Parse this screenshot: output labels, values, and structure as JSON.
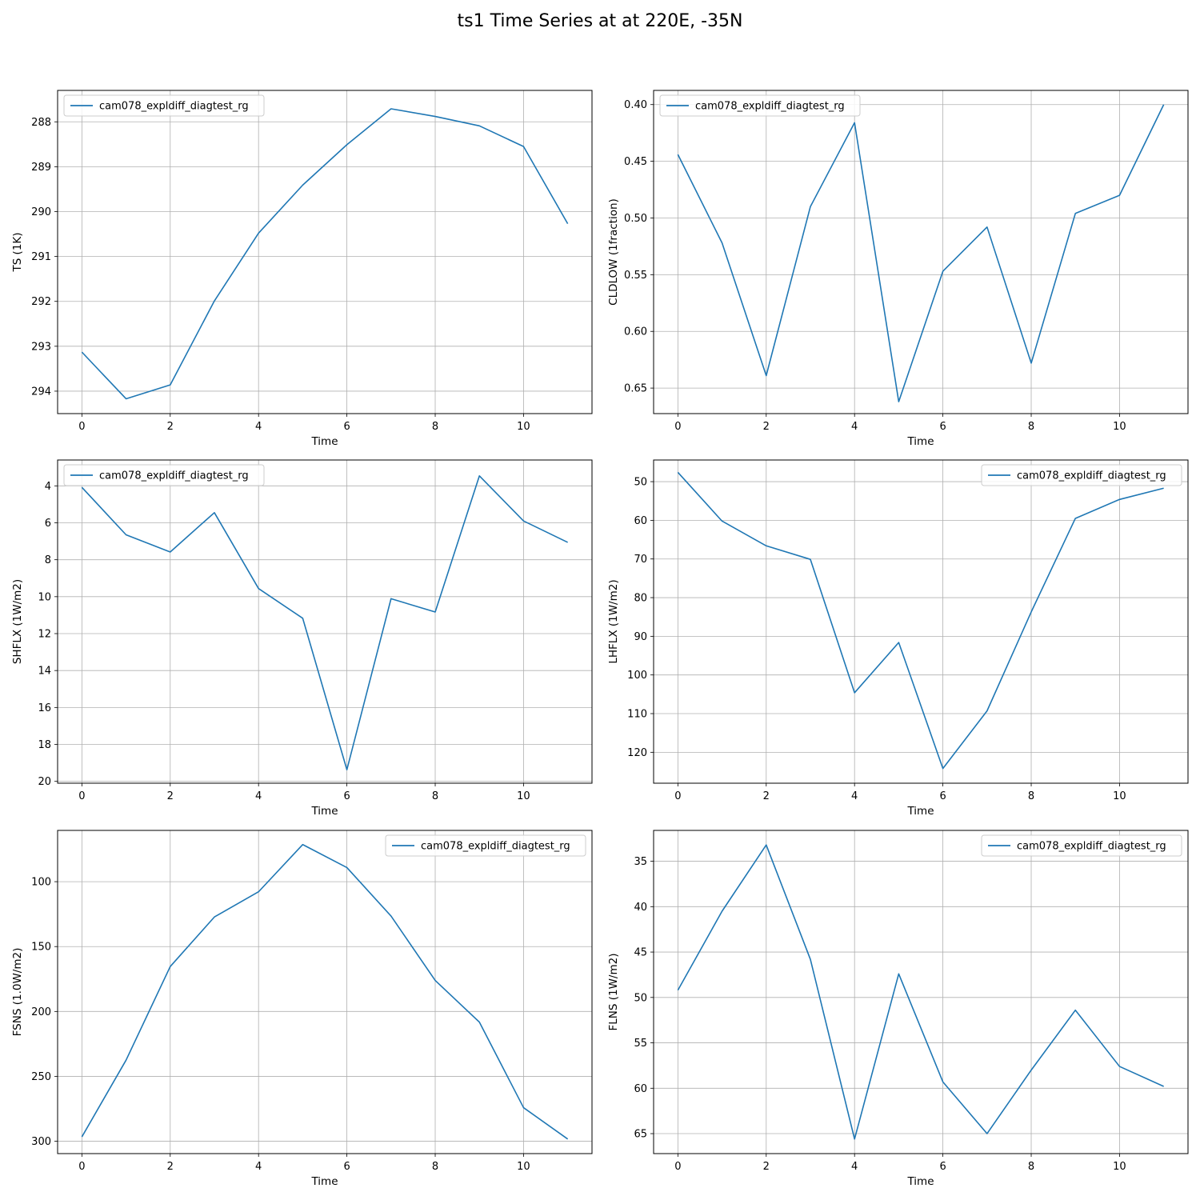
{
  "figure_title": "ts1 Time Series at at 220E, -35N",
  "chart_data": [
    {
      "type": "line",
      "xlabel": "Time",
      "ylabel": "TS (1K)",
      "xlim": [
        -0.55,
        11.55
      ],
      "ylim": [
        294.5,
        287.3
      ],
      "inverted_y": true,
      "grid": true,
      "legend": "top-left",
      "xticks": [
        0,
        2,
        4,
        6,
        8,
        10
      ],
      "yticks": [
        288,
        289,
        290,
        291,
        292,
        293,
        294
      ],
      "series": [
        {
          "name": "cam078_expldiff_diagtest_rg",
          "color": "#1f77b4",
          "x": [
            0,
            1,
            2,
            3,
            4,
            5,
            6,
            7,
            8,
            9,
            10,
            11
          ],
          "y": [
            293.13,
            294.17,
            293.86,
            291.99,
            290.48,
            289.41,
            288.51,
            287.71,
            287.88,
            288.09,
            288.55,
            290.27
          ]
        }
      ]
    },
    {
      "type": "line",
      "xlabel": "Time",
      "ylabel": "CLDLOW (1fraction)",
      "xlim": [
        -0.55,
        11.55
      ],
      "ylim": [
        0.6725,
        0.3875
      ],
      "inverted_y": true,
      "grid": true,
      "legend": "top-left",
      "xticks": [
        0,
        2,
        4,
        6,
        8,
        10
      ],
      "yticks": [
        0.4,
        0.45,
        0.5,
        0.55,
        0.6,
        0.65
      ],
      "ytick_labels": [
        "0.40",
        "0.45",
        "0.50",
        "0.55",
        "0.60",
        "0.65"
      ],
      "series": [
        {
          "name": "cam078_expldiff_diagtest_rg",
          "color": "#1f77b4",
          "x": [
            0,
            1,
            2,
            3,
            4,
            5,
            6,
            7,
            8,
            9,
            10,
            11
          ],
          "y": [
            0.444,
            0.522,
            0.639,
            0.49,
            0.416,
            0.662,
            0.547,
            0.508,
            0.628,
            0.496,
            0.48,
            0.4
          ]
        }
      ]
    },
    {
      "type": "line",
      "xlabel": "Time",
      "ylabel": "SHFLX (1W/m2)",
      "xlim": [
        -0.55,
        11.55
      ],
      "ylim": [
        20.1,
        2.6
      ],
      "inverted_y": true,
      "grid": true,
      "legend": "top-left",
      "xticks": [
        0,
        2,
        4,
        6,
        8,
        10
      ],
      "yticks": [
        4,
        6,
        8,
        10,
        12,
        14,
        16,
        18,
        20
      ],
      "series": [
        {
          "name": "cam078_expldiff_diagtest_rg",
          "color": "#1f77b4",
          "x": [
            0,
            1,
            2,
            3,
            4,
            5,
            6,
            7,
            8,
            9,
            10,
            11
          ],
          "y": [
            4.08,
            6.65,
            7.58,
            5.45,
            9.56,
            11.17,
            19.37,
            10.11,
            10.83,
            3.46,
            5.9,
            7.06
          ]
        }
      ]
    },
    {
      "type": "line",
      "xlabel": "Time",
      "ylabel": "LHFLX (1W/m2)",
      "xlim": [
        -0.55,
        11.55
      ],
      "ylim": [
        128.0,
        44.4
      ],
      "inverted_y": true,
      "grid": true,
      "legend": "top-right",
      "xticks": [
        0,
        2,
        4,
        6,
        8,
        10
      ],
      "yticks": [
        50,
        60,
        70,
        80,
        90,
        100,
        110,
        120
      ],
      "series": [
        {
          "name": "cam078_expldiff_diagtest_rg",
          "color": "#1f77b4",
          "x": [
            0,
            1,
            2,
            3,
            4,
            5,
            6,
            7,
            8,
            9,
            10,
            11
          ],
          "y": [
            47.6,
            60.2,
            66.6,
            70.1,
            104.6,
            91.6,
            124.2,
            109.3,
            83.7,
            59.5,
            54.6,
            51.7
          ]
        }
      ]
    },
    {
      "type": "line",
      "xlabel": "Time",
      "ylabel": "FSNS (1.0W/m2)",
      "xlim": [
        -0.55,
        11.55
      ],
      "ylim": [
        309.5,
        60.5
      ],
      "inverted_y": true,
      "grid": true,
      "legend": "top-right",
      "xticks": [
        0,
        2,
        4,
        6,
        8,
        10
      ],
      "yticks": [
        100,
        150,
        200,
        250,
        300
      ],
      "series": [
        {
          "name": "cam078_expldiff_diagtest_rg",
          "color": "#1f77b4",
          "x": [
            0,
            1,
            2,
            3,
            4,
            5,
            6,
            7,
            8,
            9,
            10,
            11
          ],
          "y": [
            296.6,
            237.5,
            165.4,
            127.2,
            107.8,
            71.4,
            89.1,
            126.5,
            176.1,
            208.2,
            274.1,
            298.3
          ]
        }
      ]
    },
    {
      "type": "line",
      "xlabel": "Time",
      "ylabel": "FLNS (1W/m2)",
      "xlim": [
        -0.55,
        11.55
      ],
      "ylim": [
        67.2,
        31.6
      ],
      "inverted_y": true,
      "grid": true,
      "legend": "top-right",
      "xticks": [
        0,
        2,
        4,
        6,
        8,
        10
      ],
      "yticks": [
        35,
        40,
        45,
        50,
        55,
        60,
        65
      ],
      "series": [
        {
          "name": "cam078_expldiff_diagtest_rg",
          "color": "#1f77b4",
          "x": [
            0,
            1,
            2,
            3,
            4,
            5,
            6,
            7,
            8,
            9,
            10,
            11
          ],
          "y": [
            49.2,
            40.5,
            33.2,
            45.8,
            65.6,
            47.4,
            59.3,
            65.0,
            58.0,
            51.4,
            57.6,
            59.8
          ]
        }
      ]
    }
  ]
}
